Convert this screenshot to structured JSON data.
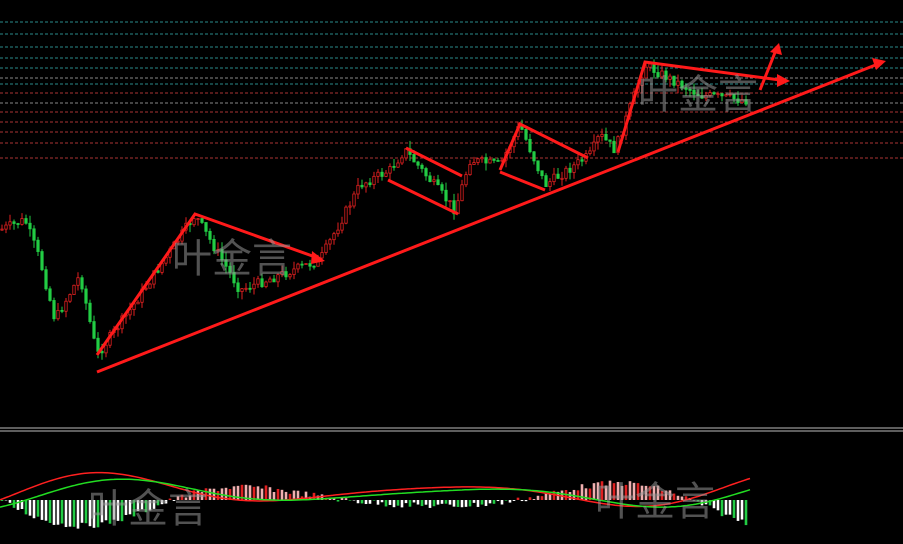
{
  "watermarks": [
    "叶金言",
    "叶金言",
    "叶金言",
    "叶金言"
  ]
}
